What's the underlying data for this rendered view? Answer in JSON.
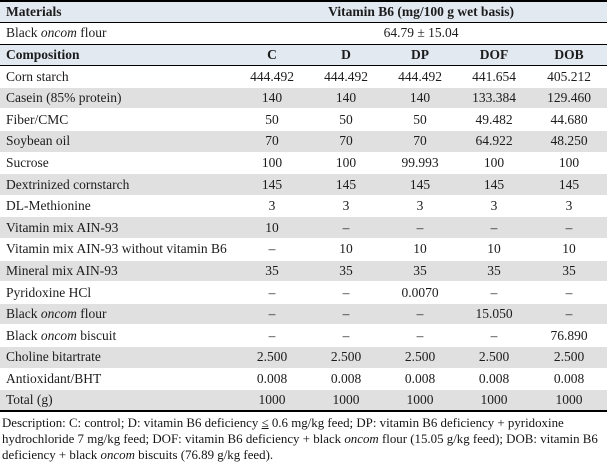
{
  "colors": {
    "header_bg": "#e2e9f1",
    "shade_bg": "#e0e0e0",
    "border": "#000000",
    "text": "#1c1c1c"
  },
  "header": {
    "materials_label": "Materials",
    "b6_header": "Vitamin B6 (mg/100 g wet basis)",
    "b6_row": {
      "label_pre": "Black ",
      "label_italic": "oncom",
      "label_post": " flour",
      "value": "64.79 ± 15.04"
    },
    "composition_label": "Composition",
    "group_columns": [
      "C",
      "D",
      "DP",
      "DOF",
      "DOB"
    ]
  },
  "rows": [
    {
      "label": "Corn starch",
      "values": [
        "444.492",
        "444.492",
        "444.492",
        "441.654",
        "405.212"
      ]
    },
    {
      "label": "Casein (85% protein)",
      "values": [
        "140",
        "140",
        "140",
        "133.384",
        "129.460"
      ]
    },
    {
      "label": "Fiber/CMC",
      "values": [
        "50",
        "50",
        "50",
        "49.482",
        "44.680"
      ]
    },
    {
      "label": "Soybean oil",
      "values": [
        "70",
        "70",
        "70",
        "64.922",
        "48.250"
      ]
    },
    {
      "label": "Sucrose",
      "values": [
        "100",
        "100",
        "99.993",
        "100",
        "100"
      ]
    },
    {
      "label": "Dextrinized cornstarch",
      "values": [
        "145",
        "145",
        "145",
        "145",
        "145"
      ]
    },
    {
      "label": "DL-Methionine",
      "values": [
        "3",
        "3",
        "3",
        "3",
        "3"
      ]
    },
    {
      "label": "Vitamin mix AIN-93",
      "values": [
        "10",
        "–",
        "–",
        "–",
        "–"
      ]
    },
    {
      "label": "Vitamin mix AIN-93 without vitamin B6",
      "values": [
        "–",
        "10",
        "10",
        "10",
        "10"
      ]
    },
    {
      "label": "Mineral mix AIN-93",
      "values": [
        "35",
        "35",
        "35",
        "35",
        "35"
      ]
    },
    {
      "label": "Pyridoxine HCl",
      "values": [
        "–",
        "–",
        "0.0070",
        "–",
        "–"
      ]
    },
    {
      "label_pre": "Black ",
      "label_italic": "oncom",
      "label_post": " flour",
      "values": [
        "–",
        "–",
        "–",
        "15.050",
        "–"
      ]
    },
    {
      "label_pre": "Black ",
      "label_italic": "oncom",
      "label_post": " biscuit",
      "values": [
        "–",
        "–",
        "–",
        "–",
        "76.890"
      ]
    },
    {
      "label": "Choline bitartrate",
      "values": [
        "2.500",
        "2.500",
        "2.500",
        "2.500",
        "2.500"
      ]
    },
    {
      "label": "Antioxidant/BHT",
      "values": [
        "0.008",
        "0.008",
        "0.008",
        "0.008",
        "0.008"
      ]
    },
    {
      "label": "Total (g)",
      "values": [
        "1000",
        "1000",
        "1000",
        "1000",
        "1000"
      ]
    }
  ],
  "description": {
    "seg1": "Description: C: control; D: vitamin B6 deficiency ",
    "le": "≤",
    "seg2": " 0.6 mg/kg feed; DP: vitamin B6 deficiency + pyridoxine hydrochloride 7 mg/kg feed; DOF: vitamin B6 deficiency + black ",
    "italic1": "oncom",
    "seg3": " flour (15.05 g/kg feed); DOB: vitamin B6 deficiency + black ",
    "italic2": "oncom",
    "seg4": " biscuits (76.89 g/kg feed)."
  }
}
